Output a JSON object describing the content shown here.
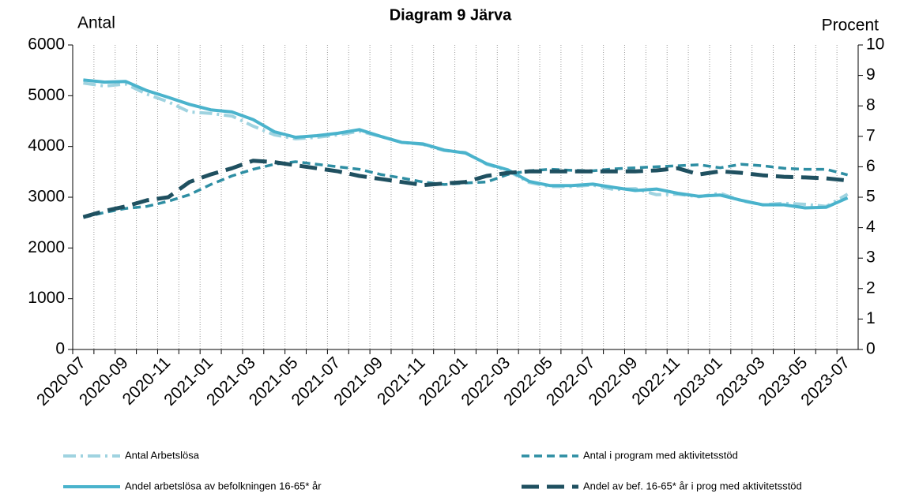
{
  "chart_data": {
    "type": "line",
    "title": "Diagram 9 Järva",
    "y_label": "Antal",
    "y2_label": "Procent",
    "categories": [
      "2020-07",
      null,
      "2020-09",
      null,
      "2020-11",
      null,
      "2021-01",
      null,
      "2021-03",
      null,
      "2021-05",
      null,
      "2021-07",
      null,
      "2021-09",
      null,
      "2021-11",
      null,
      "2022-01",
      null,
      "2022-03",
      null,
      "2022-05",
      null,
      "2022-07",
      null,
      "2022-09",
      null,
      "2022-11",
      null,
      "2023-01",
      null,
      "2023-03",
      null,
      "2023-05",
      null,
      "2023-07"
    ],
    "ylim": [
      0,
      6000
    ],
    "yticks": [
      0,
      1000,
      2000,
      3000,
      4000,
      5000,
      6000
    ],
    "y2lim": [
      0,
      10
    ],
    "y2ticks": [
      0,
      1,
      2,
      3,
      4,
      5,
      6,
      7,
      8,
      9,
      10
    ],
    "grid": true,
    "legend": "bottom",
    "series": [
      {
        "name": "Antal Arbetslösa",
        "color": "#9fd3e0",
        "values": [
          5250,
          5190,
          5230,
          5030,
          4880,
          4680,
          4650,
          4600,
          4400,
          4230,
          4150,
          4180,
          4230,
          4300,
          4200,
          4080,
          4040,
          3920,
          3880,
          3650,
          3520,
          3290,
          3210,
          3210,
          3240,
          3150,
          3170,
          3050,
          3060,
          3010,
          3080,
          2930,
          2850,
          2880,
          2860,
          2820,
          3060
        ]
      },
      {
        "name": "Antal i program med aktivitetsstöd",
        "color": "#2e8ea3",
        "values": [
          2600,
          2700,
          2780,
          2820,
          2920,
          3050,
          3250,
          3420,
          3550,
          3650,
          3700,
          3650,
          3600,
          3550,
          3450,
          3380,
          3300,
          3250,
          3280,
          3300,
          3450,
          3520,
          3550,
          3530,
          3520,
          3560,
          3580,
          3600,
          3620,
          3640,
          3580,
          3650,
          3620,
          3570,
          3550,
          3550,
          3440
        ]
      },
      {
        "name": "Andel arbetslösa av befolkningen 16-65* år",
        "color": "#4ab3cc",
        "axis": "y2",
        "values": [
          8.85,
          8.78,
          8.8,
          8.5,
          8.28,
          8.05,
          7.87,
          7.8,
          7.55,
          7.15,
          6.97,
          7.02,
          7.1,
          7.22,
          7.0,
          6.8,
          6.75,
          6.55,
          6.45,
          6.1,
          5.9,
          5.52,
          5.38,
          5.38,
          5.43,
          5.32,
          5.22,
          5.27,
          5.13,
          5.03,
          5.07,
          4.9,
          4.75,
          4.75,
          4.65,
          4.67,
          4.98
        ]
      },
      {
        "name": "Andel av bef. 16-65* år i prog med aktivitetsstöd",
        "color": "#1f5060",
        "axis": "y2",
        "values": [
          4.35,
          4.55,
          4.7,
          4.9,
          5.0,
          5.5,
          5.75,
          5.95,
          6.2,
          6.15,
          6.05,
          5.95,
          5.85,
          5.7,
          5.6,
          5.5,
          5.4,
          5.45,
          5.5,
          5.7,
          5.8,
          5.85,
          5.85,
          5.85,
          5.85,
          5.85,
          5.85,
          5.88,
          5.95,
          5.75,
          5.85,
          5.8,
          5.72,
          5.67,
          5.65,
          5.62,
          5.55
        ]
      }
    ]
  }
}
